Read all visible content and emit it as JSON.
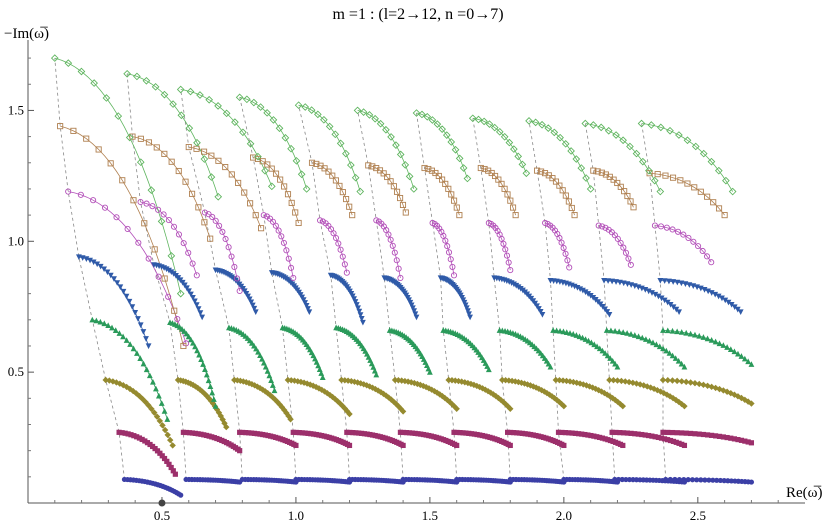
{
  "chart_data": {
    "type": "scatter",
    "title": "m =1 : (l=2→12, n =0→7)",
    "xlabel": "Re(ω̅)",
    "ylabel": "−Im(ω̅)",
    "xlim": [
      0.0,
      2.9
    ],
    "ylim": [
      0.0,
      1.75
    ],
    "x_ticks": [
      0.5,
      1.0,
      1.5,
      2.0,
      2.5
    ],
    "x_tick_labels": [
      "0.5",
      "1.0",
      "1.5",
      "2.0",
      "2.5"
    ],
    "y_ticks": [
      0.5,
      1.0,
      1.5
    ],
    "y_tick_labels": [
      "0.5",
      "1.0",
      "1.5"
    ],
    "grid": false,
    "legend": "none",
    "l_values": [
      2,
      3,
      4,
      5,
      6,
      7,
      8,
      9,
      10,
      11,
      12
    ],
    "series": [
      {
        "n": 0,
        "marker": "circle-filled",
        "color": "#3b3fa6",
        "starts": [
          [
            0.36,
            0.09
          ],
          [
            0.59,
            0.09
          ],
          [
            0.8,
            0.09
          ],
          [
            1.0,
            0.09
          ],
          [
            1.2,
            0.09
          ],
          [
            1.4,
            0.09
          ],
          [
            1.6,
            0.09
          ],
          [
            1.8,
            0.09
          ],
          [
            2.0,
            0.09
          ],
          [
            2.19,
            0.09
          ],
          [
            2.38,
            0.09
          ]
        ],
        "ends": [
          [
            0.57,
            0.03
          ],
          [
            0.79,
            0.08
          ],
          [
            1.0,
            0.08
          ],
          [
            1.2,
            0.08
          ],
          [
            1.4,
            0.08
          ],
          [
            1.6,
            0.08
          ],
          [
            1.8,
            0.08
          ],
          [
            2.0,
            0.08
          ],
          [
            2.2,
            0.08
          ],
          [
            2.45,
            0.08
          ],
          [
            2.7,
            0.08
          ]
        ]
      },
      {
        "n": 1,
        "marker": "square-filled",
        "color": "#9c2f6b",
        "starts": [
          [
            0.34,
            0.27
          ],
          [
            0.58,
            0.27
          ],
          [
            0.79,
            0.27
          ],
          [
            0.99,
            0.27
          ],
          [
            1.19,
            0.27
          ],
          [
            1.39,
            0.27
          ],
          [
            1.59,
            0.27
          ],
          [
            1.79,
            0.27
          ],
          [
            1.98,
            0.27
          ],
          [
            2.18,
            0.27
          ],
          [
            2.37,
            0.27
          ]
        ],
        "ends": [
          [
            0.55,
            0.11
          ],
          [
            0.79,
            0.2
          ],
          [
            1.0,
            0.22
          ],
          [
            1.2,
            0.22
          ],
          [
            1.4,
            0.22
          ],
          [
            1.6,
            0.22
          ],
          [
            1.8,
            0.22
          ],
          [
            2.0,
            0.22
          ],
          [
            2.22,
            0.22
          ],
          [
            2.45,
            0.22
          ],
          [
            2.7,
            0.23
          ]
        ]
      },
      {
        "n": 2,
        "marker": "diamond-filled",
        "color": "#958a2f",
        "starts": [
          [
            0.29,
            0.47
          ],
          [
            0.56,
            0.47
          ],
          [
            0.77,
            0.47
          ],
          [
            0.97,
            0.47
          ],
          [
            1.17,
            0.47
          ],
          [
            1.37,
            0.47
          ],
          [
            1.57,
            0.47
          ],
          [
            1.77,
            0.47
          ],
          [
            1.97,
            0.47
          ],
          [
            2.17,
            0.47
          ],
          [
            2.37,
            0.47
          ]
        ],
        "ends": [
          [
            0.54,
            0.22
          ],
          [
            0.74,
            0.29
          ],
          [
            0.98,
            0.32
          ],
          [
            1.2,
            0.34
          ],
          [
            1.4,
            0.35
          ],
          [
            1.6,
            0.36
          ],
          [
            1.8,
            0.36
          ],
          [
            2.0,
            0.37
          ],
          [
            2.22,
            0.37
          ],
          [
            2.45,
            0.37
          ],
          [
            2.7,
            0.38
          ]
        ]
      },
      {
        "n": 3,
        "marker": "triangle-up-filled",
        "color": "#2a9a5a",
        "starts": [
          [
            0.24,
            0.7
          ],
          [
            0.53,
            0.69
          ],
          [
            0.75,
            0.67
          ],
          [
            0.95,
            0.67
          ],
          [
            1.15,
            0.67
          ],
          [
            1.35,
            0.66
          ],
          [
            1.55,
            0.66
          ],
          [
            1.76,
            0.66
          ],
          [
            1.96,
            0.66
          ],
          [
            2.16,
            0.66
          ],
          [
            2.37,
            0.66
          ]
        ],
        "ends": [
          [
            0.52,
            0.32
          ],
          [
            0.7,
            0.37
          ],
          [
            0.92,
            0.43
          ],
          [
            1.1,
            0.48
          ],
          [
            1.3,
            0.49
          ],
          [
            1.5,
            0.5
          ],
          [
            1.72,
            0.51
          ],
          [
            1.95,
            0.52
          ],
          [
            2.2,
            0.52
          ],
          [
            2.45,
            0.52
          ],
          [
            2.7,
            0.53
          ]
        ]
      },
      {
        "n": 4,
        "marker": "triangle-down-filled",
        "color": "#2f5aa8",
        "starts": [
          [
            0.19,
            0.94
          ],
          [
            0.47,
            0.91
          ],
          [
            0.7,
            0.89
          ],
          [
            0.91,
            0.88
          ],
          [
            1.13,
            0.87
          ],
          [
            1.33,
            0.86
          ],
          [
            1.54,
            0.86
          ],
          [
            1.74,
            0.86
          ],
          [
            1.95,
            0.85
          ],
          [
            2.15,
            0.85
          ],
          [
            2.36,
            0.85
          ]
        ],
        "ends": [
          [
            0.45,
            0.6
          ],
          [
            0.65,
            0.71
          ],
          [
            0.85,
            0.73
          ],
          [
            1.05,
            0.73
          ],
          [
            1.25,
            0.69
          ],
          [
            1.45,
            0.71
          ],
          [
            1.65,
            0.71
          ],
          [
            1.92,
            0.72
          ],
          [
            2.17,
            0.72
          ],
          [
            2.43,
            0.73
          ],
          [
            2.66,
            0.73
          ]
        ]
      },
      {
        "n": 5,
        "marker": "circle-open",
        "color": "#b34fb9",
        "starts": [
          [
            0.15,
            1.19
          ],
          [
            0.42,
            1.15
          ],
          [
            0.66,
            1.11
          ],
          [
            0.88,
            1.1
          ],
          [
            1.09,
            1.08
          ],
          [
            1.3,
            1.08
          ],
          [
            1.51,
            1.07
          ],
          [
            1.72,
            1.07
          ],
          [
            1.93,
            1.07
          ],
          [
            2.13,
            1.06
          ],
          [
            2.34,
            1.06
          ]
        ],
        "ends": [
          [
            0.59,
            0.61
          ],
          [
            0.63,
            0.87
          ],
          [
            0.79,
            0.81
          ],
          [
            0.99,
            0.86
          ],
          [
            1.19,
            0.88
          ],
          [
            1.39,
            0.86
          ],
          [
            1.59,
            0.87
          ],
          [
            1.8,
            0.89
          ],
          [
            2.02,
            0.9
          ],
          [
            2.25,
            0.91
          ],
          [
            2.55,
            0.92
          ]
        ]
      },
      {
        "n": 6,
        "marker": "square-open",
        "color": "#b08050",
        "starts": [
          [
            0.12,
            1.44
          ],
          [
            0.39,
            1.4
          ],
          [
            0.6,
            1.36
          ],
          [
            0.84,
            1.32
          ],
          [
            1.06,
            1.3
          ],
          [
            1.27,
            1.29
          ],
          [
            1.48,
            1.28
          ],
          [
            1.69,
            1.28
          ],
          [
            1.9,
            1.27
          ],
          [
            2.11,
            1.27
          ],
          [
            2.32,
            1.26
          ]
        ],
        "ends": [
          [
            0.58,
            0.6
          ],
          [
            0.68,
            1.01
          ],
          [
            0.87,
            1.05
          ],
          [
            1.01,
            1.07
          ],
          [
            1.21,
            1.1
          ],
          [
            1.41,
            1.11
          ],
          [
            1.61,
            1.1
          ],
          [
            1.82,
            1.1
          ],
          [
            2.04,
            1.1
          ],
          [
            2.26,
            1.13
          ],
          [
            2.6,
            1.1
          ]
        ]
      },
      {
        "n": 7,
        "marker": "diamond-open",
        "color": "#5fb55f",
        "starts": [
          [
            0.1,
            1.7
          ],
          [
            0.37,
            1.64
          ],
          [
            0.57,
            1.58
          ],
          [
            0.79,
            1.55
          ],
          [
            1.01,
            1.52
          ],
          [
            1.23,
            1.5
          ],
          [
            1.45,
            1.49
          ],
          [
            1.66,
            1.47
          ],
          [
            1.87,
            1.46
          ],
          [
            2.08,
            1.45
          ],
          [
            2.29,
            1.45
          ]
        ],
        "ends": [
          [
            0.57,
            0.8
          ],
          [
            0.71,
            1.17
          ],
          [
            0.91,
            1.21
          ],
          [
            1.04,
            1.2
          ],
          [
            1.24,
            1.19
          ],
          [
            1.44,
            1.2
          ],
          [
            1.64,
            1.24
          ],
          [
            1.86,
            1.26
          ],
          [
            2.1,
            1.2
          ],
          [
            2.36,
            1.19
          ],
          [
            2.63,
            1.19
          ]
        ]
      }
    ]
  }
}
